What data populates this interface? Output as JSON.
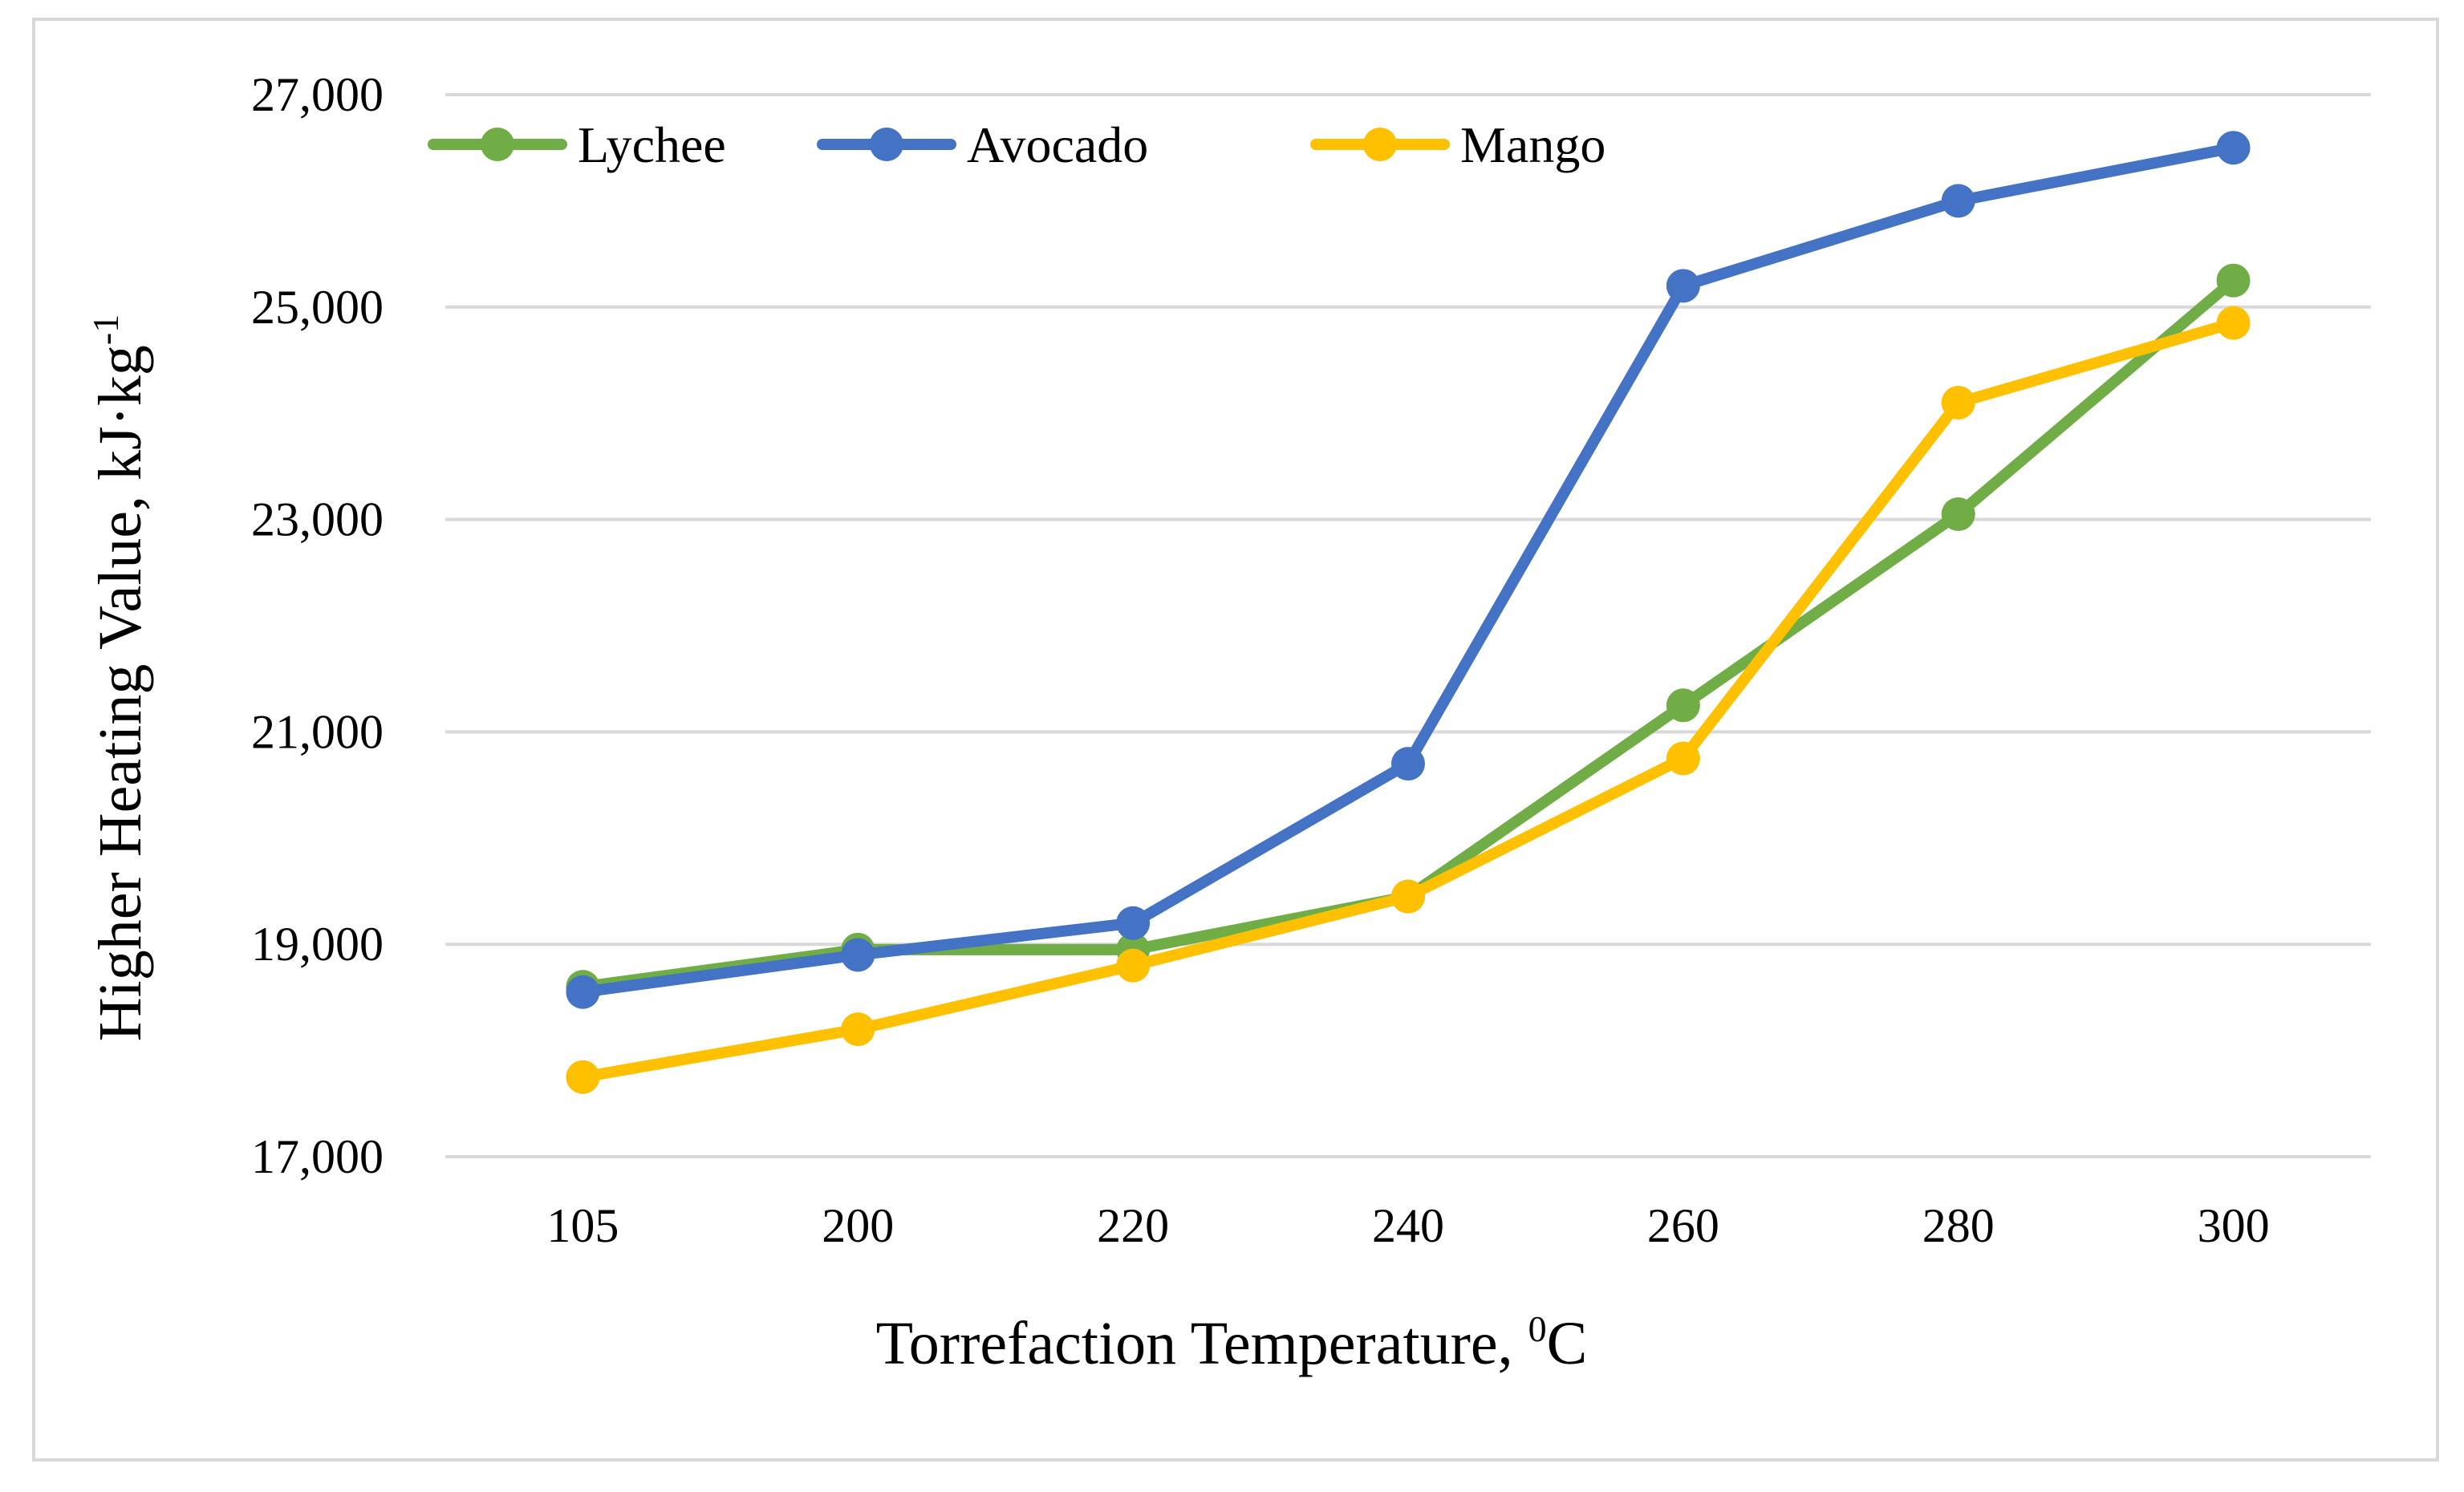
{
  "chart_data": {
    "type": "line",
    "categories": [
      "105",
      "200",
      "220",
      "240",
      "260",
      "280",
      "300"
    ],
    "series": [
      {
        "name": "Lychee",
        "color": "#70ad47",
        "values": [
          18600,
          18950,
          18950,
          19450,
          21250,
          23050,
          25250
        ]
      },
      {
        "name": "Avocado",
        "color": "#4472c4",
        "values": [
          18550,
          18900,
          19200,
          20700,
          25200,
          26000,
          26500
        ]
      },
      {
        "name": "Mango",
        "color": "#ffc000",
        "values": [
          17750,
          18200,
          18800,
          19450,
          20750,
          24100,
          24850
        ]
      }
    ],
    "yticks": [
      "17,000",
      "19,000",
      "21,000",
      "23,000",
      "25,000",
      "27,000"
    ],
    "ylim": [
      17000,
      27000
    ],
    "xlabel_main": "Torrefaction Temperature, ",
    "xlabel_sup": "0",
    "xlabel_tail": "C",
    "ylabel_main": "Higher Heating Value, kJ·kg",
    "ylabel_sup": "-1",
    "grid": true,
    "legend_position": "top-left"
  }
}
